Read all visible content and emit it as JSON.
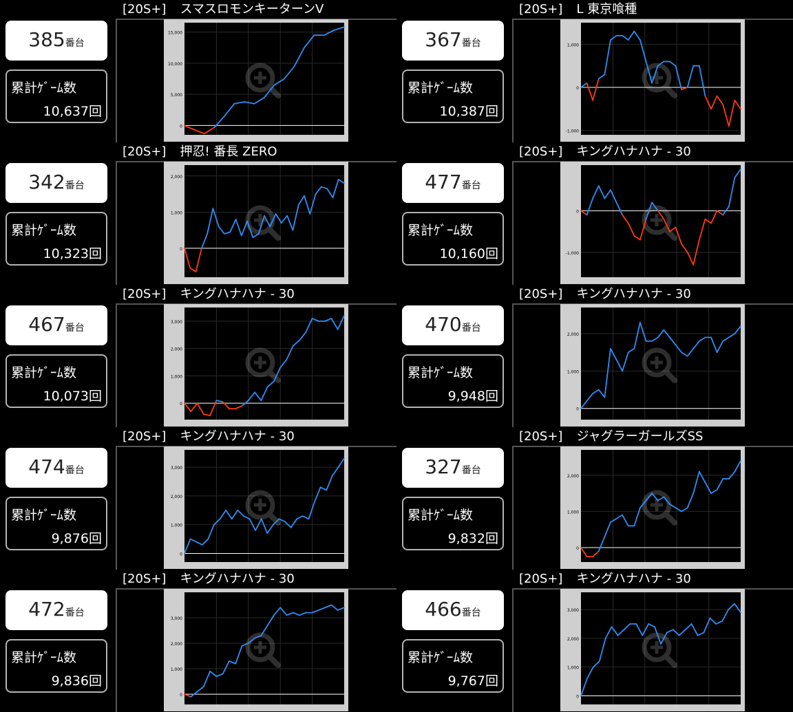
{
  "machine_suffix": "番台",
  "games_label": "累計ｹﾞｰﾑ数",
  "cells": [
    {
      "tag": "[20S+]",
      "title": "スマスロモンキーターンV",
      "machine": "385",
      "games": "10,637回"
    },
    {
      "tag": "[20S+]",
      "title": "L 東京喰種",
      "machine": "367",
      "games": "10,387回"
    },
    {
      "tag": "[20S+]",
      "title": "押忍! 番長 ZERO",
      "machine": "342",
      "games": "10,323回"
    },
    {
      "tag": "[20S+]",
      "title": "キングハナハナ - 30",
      "machine": "477",
      "games": "10,160回"
    },
    {
      "tag": "[20S+]",
      "title": "キングハナハナ - 30",
      "machine": "467",
      "games": "10,073回"
    },
    {
      "tag": "[20S+]",
      "title": "キングハナハナ - 30",
      "machine": "470",
      "games": "9,948回"
    },
    {
      "tag": "[20S+]",
      "title": "キングハナハナ - 30",
      "machine": "474",
      "games": "9,876回"
    },
    {
      "tag": "[20S+]",
      "title": "ジャグラーガールズSS",
      "machine": "327",
      "games": "9,832回"
    },
    {
      "tag": "[20S+]",
      "title": "キングハナハナ - 30",
      "machine": "472",
      "games": "9,836回"
    },
    {
      "tag": "[20S+]",
      "title": "キングハナハナ - 30",
      "machine": "466",
      "games": "9,767回"
    }
  ],
  "colors": {
    "positive": "#2f8ef5",
    "negative": "#ff3b10",
    "plot_bg": "#000000",
    "frame": "#cfcfcf",
    "zero_line": "#ffffff"
  },
  "chart_data": [
    {
      "type": "line",
      "ylim": [
        -1500,
        16500
      ],
      "yticks": [
        0,
        5000,
        10000,
        15000
      ],
      "ytick_labels": [
        "0",
        "5,000",
        "10,000",
        "15,000"
      ],
      "values": [
        0,
        -700,
        -1300,
        -300,
        1500,
        3500,
        3800,
        3500,
        4500,
        6500,
        7500,
        9500,
        12500,
        14500,
        14500,
        15300,
        15800
      ]
    },
    {
      "type": "line",
      "ylim": [
        -1100,
        1500
      ],
      "yticks": [
        -1000,
        0,
        1000
      ],
      "ytick_labels": [
        "-1,000",
        "0",
        "1,000"
      ],
      "values": [
        0,
        100,
        -300,
        200,
        300,
        1100,
        1200,
        1200,
        1100,
        1300,
        1100,
        600,
        100,
        500,
        600,
        600,
        500,
        -50,
        0,
        500,
        500,
        -200,
        -500,
        -200,
        -400,
        -900,
        -300,
        -500
      ]
    },
    {
      "type": "line",
      "ylim": [
        -800,
        2300
      ],
      "yticks": [
        0,
        1000,
        2000
      ],
      "ytick_labels": [
        "0",
        "1,000",
        "2,000"
      ],
      "values": [
        0,
        -550,
        -650,
        0,
        400,
        1100,
        600,
        400,
        450,
        800,
        350,
        750,
        300,
        400,
        900,
        600,
        950,
        700,
        900,
        500,
        1200,
        1450,
        950,
        1500,
        1700,
        1650,
        1400,
        1900,
        1800
      ]
    },
    {
      "type": "line",
      "ylim": [
        -1600,
        1100
      ],
      "yticks": [
        -1000,
        0
      ],
      "ytick_labels": [
        "-1,000",
        "0"
      ],
      "values": [
        0,
        -100,
        300,
        600,
        300,
        500,
        200,
        -100,
        -300,
        -600,
        -700,
        -200,
        200,
        0,
        -200,
        -500,
        -400,
        -800,
        -1000,
        -1300,
        -700,
        -200,
        -300,
        0,
        -100,
        100,
        800,
        1000
      ]
    },
    {
      "type": "line",
      "ylim": [
        -600,
        3500
      ],
      "yticks": [
        0,
        1000,
        2000,
        3000
      ],
      "ytick_labels": [
        "0",
        "1,000",
        "2,000",
        "3,000"
      ],
      "values": [
        0,
        -300,
        0,
        -400,
        -450,
        100,
        50,
        -200,
        -200,
        -100,
        100,
        400,
        100,
        600,
        800,
        1300,
        1600,
        2100,
        2300,
        2600,
        3100,
        3000,
        3000,
        3100,
        2700,
        3200
      ]
    },
    {
      "type": "line",
      "ylim": [
        -300,
        2700
      ],
      "yticks": [
        0,
        1000,
        2000
      ],
      "ytick_labels": [
        "0",
        "1,000",
        "2,000"
      ],
      "values": [
        0,
        200,
        400,
        500,
        300,
        1600,
        1300,
        1000,
        1500,
        1600,
        2300,
        1800,
        1800,
        1900,
        2100,
        1900,
        1700,
        1500,
        1400,
        1600,
        1800,
        1900,
        1900,
        1500,
        1800,
        1900,
        2000,
        2200
      ]
    },
    {
      "type": "line",
      "ylim": [
        -300,
        3600
      ],
      "yticks": [
        0,
        1000,
        2000,
        3000
      ],
      "ytick_labels": [
        "0",
        "1,000",
        "2,000",
        "3,000"
      ],
      "values": [
        0,
        500,
        400,
        300,
        500,
        1000,
        1200,
        1500,
        1200,
        1500,
        1300,
        1200,
        800,
        1200,
        700,
        1000,
        1200,
        1100,
        900,
        1200,
        1300,
        1200,
        1800,
        2300,
        2200,
        2700,
        3000,
        3300
      ]
    },
    {
      "type": "line",
      "ylim": [
        -400,
        2700
      ],
      "yticks": [
        0,
        1000,
        2000
      ],
      "ytick_labels": [
        "0",
        "1,000",
        "2,000"
      ],
      "values": [
        0,
        -250,
        -250,
        -100,
        300,
        700,
        800,
        900,
        600,
        600,
        1100,
        1300,
        1500,
        1300,
        1400,
        1200,
        1100,
        1000,
        1100,
        1500,
        2100,
        1800,
        1500,
        1600,
        1900,
        1900,
        2100,
        2400
      ]
    },
    {
      "type": "line",
      "ylim": [
        -400,
        4000
      ],
      "yticks": [
        0,
        1000,
        2000,
        3000
      ],
      "ytick_labels": [
        "0",
        "1,000",
        "2,000",
        "3,000"
      ],
      "values": [
        0,
        -100,
        100,
        300,
        900,
        700,
        800,
        1300,
        1200,
        1900,
        2000,
        2200,
        2300,
        2700,
        3100,
        3400,
        3100,
        3200,
        3100,
        3200,
        3200,
        3300,
        3400,
        3500,
        3300,
        3400
      ]
    },
    {
      "type": "line",
      "ylim": [
        -300,
        3600
      ],
      "yticks": [
        0,
        1000,
        2000,
        3000
      ],
      "ytick_labels": [
        "0",
        "1,000",
        "2,000",
        "3,000"
      ],
      "values": [
        0,
        600,
        1000,
        1200,
        2000,
        2400,
        2100,
        2300,
        2500,
        2500,
        2100,
        2500,
        2400,
        1800,
        2200,
        2300,
        2100,
        2300,
        2500,
        2100,
        2200,
        2700,
        2500,
        2600,
        3000,
        3200,
        2900
      ]
    }
  ]
}
